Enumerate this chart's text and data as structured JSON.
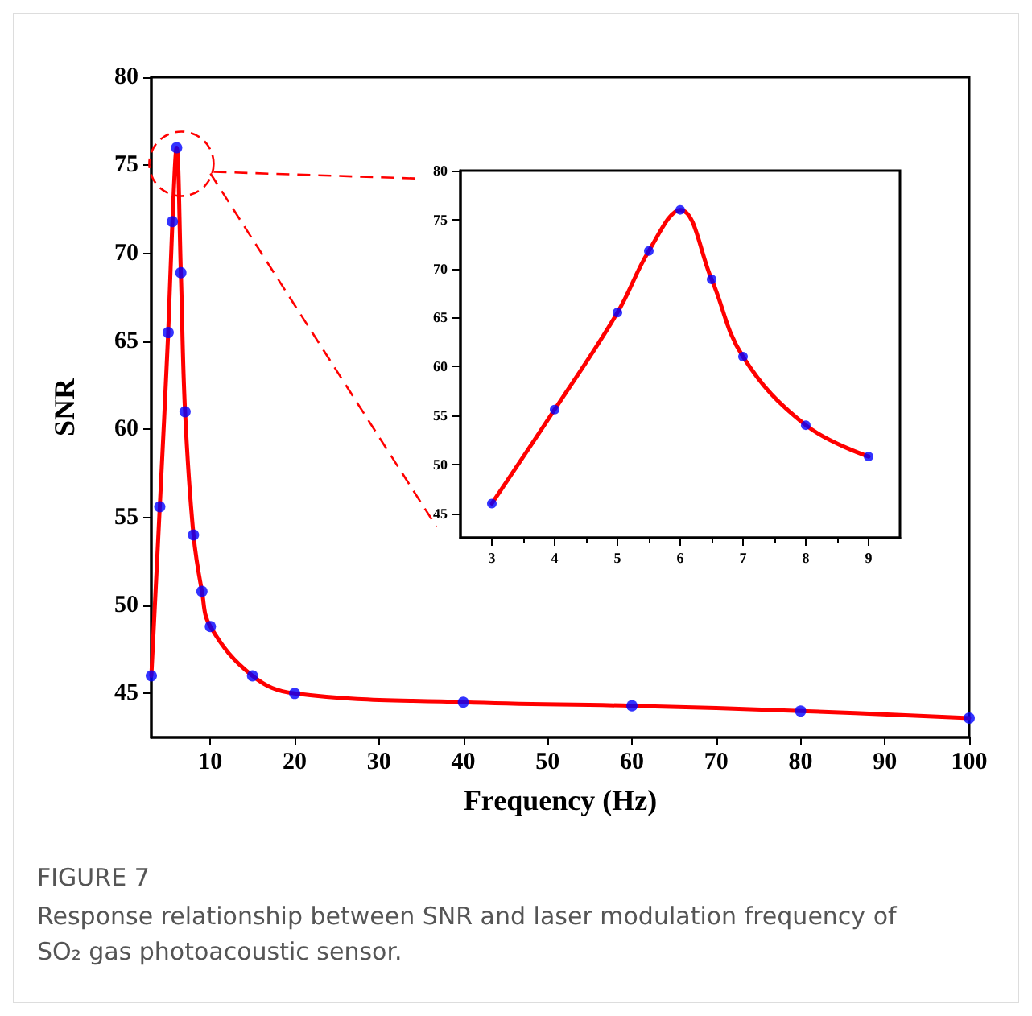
{
  "chart_data": [
    {
      "type": "line",
      "xlabel": "Frequency (Hz)",
      "ylabel": "SNR",
      "x": [
        3,
        4,
        5,
        5.5,
        6,
        6.5,
        7,
        8,
        9,
        10,
        15,
        20,
        40,
        60,
        80,
        100
      ],
      "series": [
        {
          "color": "#ff0000",
          "marker": "none",
          "values": [
            46,
            55.6,
            65.5,
            71.8,
            76,
            68.9,
            61,
            54,
            50.8,
            48.8,
            46,
            45,
            44.5,
            44.3,
            44,
            43.6
          ]
        },
        {
          "type": "scatter",
          "color": "#0000ff",
          "marker": "circle",
          "values": [
            46,
            55.6,
            65.5,
            71.8,
            76,
            68.9,
            61,
            54,
            50.8,
            48.8,
            46,
            45,
            44.5,
            44.3,
            44,
            43.6
          ]
        }
      ],
      "xlim": [
        3,
        100
      ],
      "ylim": [
        42.5,
        80
      ],
      "xticks": [
        10,
        20,
        30,
        40,
        50,
        60,
        70,
        80,
        90,
        100
      ],
      "yticks": [
        45,
        50,
        55,
        60,
        65,
        70,
        75,
        80
      ],
      "grid": false,
      "annotations": [
        "FIGURE 7",
        "Response relationship between SNR and laser modulation frequency of SO₂ gas photoacoustic sensor."
      ]
    },
    {
      "type": "line",
      "x": [
        3,
        4,
        5,
        5.5,
        6,
        6.5,
        7,
        8,
        9
      ],
      "series": [
        {
          "color": "#ff0000",
          "marker": "none",
          "values": [
            46,
            55.6,
            65.5,
            71.8,
            76,
            68.9,
            61,
            54,
            50.8
          ]
        },
        {
          "type": "scatter",
          "color": "#0000ff",
          "marker": "circle",
          "values": [
            46,
            55.6,
            65.5,
            71.8,
            76,
            68.9,
            61,
            54,
            50.8
          ]
        }
      ],
      "xlim": [
        2.5,
        9.5
      ],
      "ylim": [
        42.5,
        80
      ],
      "xticks": [
        3,
        4,
        5,
        6,
        7,
        8,
        9
      ],
      "yticks": [
        45,
        50,
        55,
        60,
        65,
        70,
        75,
        80
      ],
      "grid": false
    }
  ]
}
